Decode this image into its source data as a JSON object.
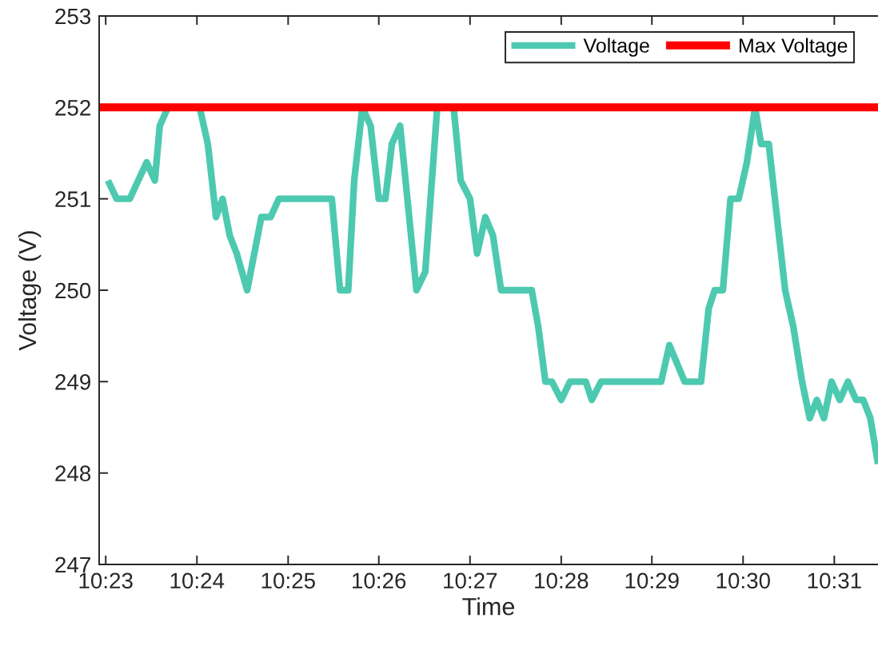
{
  "chart_data": {
    "type": "line",
    "xlabel": "Time",
    "ylabel": "Voltage (V)",
    "legend": "top right",
    "xlim": [
      10.3821,
      10.5247
    ],
    "ylim": [
      247,
      253
    ],
    "xticks": [
      {
        "value": 10.3833,
        "label": "10:23"
      },
      {
        "value": 10.4,
        "label": "10:24"
      },
      {
        "value": 10.4167,
        "label": "10:25"
      },
      {
        "value": 10.4333,
        "label": "10:26"
      },
      {
        "value": 10.45,
        "label": "10:27"
      },
      {
        "value": 10.4667,
        "label": "10:28"
      },
      {
        "value": 10.4833,
        "label": "10:29"
      },
      {
        "value": 10.5,
        "label": "10:30"
      },
      {
        "value": 10.5167,
        "label": "10:31"
      }
    ],
    "yticks": [
      247,
      248,
      249,
      250,
      251,
      252,
      253
    ],
    "series": [
      {
        "name": "Voltage",
        "color": "#4dc9b0",
        "x": [
          10.3837,
          10.3853,
          10.3877,
          10.3908,
          10.3923,
          10.3932,
          10.3947,
          10.4005,
          10.402,
          10.4035,
          10.4047,
          10.406,
          10.4073,
          10.4092,
          10.4118,
          10.4135,
          10.415,
          10.4247,
          10.4262,
          10.4277,
          10.4288,
          10.4303,
          10.4318,
          10.4333,
          10.4345,
          10.4357,
          10.4372,
          10.4402,
          10.4418,
          10.444,
          10.447,
          10.4483,
          10.45,
          10.4513,
          10.4528,
          10.4542,
          10.4557,
          10.4613,
          10.4625,
          10.4638,
          10.465,
          10.4667,
          10.4683,
          10.4712,
          10.4723,
          10.474,
          10.485,
          10.4865,
          10.4893,
          10.4923,
          10.4937,
          10.4948,
          10.4963,
          10.4977,
          10.4992,
          10.5007,
          10.5022,
          10.5033,
          10.5047,
          10.5077,
          10.5092,
          10.5108,
          10.5122,
          10.5135,
          10.5148,
          10.5162,
          10.5177,
          10.5192,
          10.5207,
          10.522,
          10.5233,
          10.5247
        ],
        "values": [
          251.2,
          251.0,
          251.0,
          251.4,
          251.2,
          251.8,
          252.0,
          252.0,
          251.6,
          250.8,
          251.0,
          250.6,
          250.4,
          250.0,
          250.8,
          250.8,
          251.0,
          251.0,
          250.0,
          250.0,
          251.2,
          252.0,
          251.8,
          251.0,
          251.0,
          251.6,
          251.8,
          250.0,
          250.2,
          252.0,
          252.0,
          251.2,
          251.0,
          250.4,
          250.8,
          250.6,
          250.0,
          250.0,
          249.6,
          249.0,
          249.0,
          248.8,
          249.0,
          249.0,
          248.8,
          249.0,
          249.0,
          249.4,
          249.0,
          249.0,
          249.8,
          250.0,
          250.0,
          251.0,
          251.0,
          251.4,
          252.0,
          251.6,
          251.6,
          250.0,
          249.6,
          249.0,
          248.6,
          248.8,
          248.6,
          249.0,
          248.8,
          249.0,
          248.8,
          248.8,
          248.6,
          248.1
        ]
      },
      {
        "name": "Max Voltage",
        "color": "#ff0000",
        "x": [
          10.3821,
          10.5247
        ],
        "values": [
          252,
          252
        ]
      }
    ]
  }
}
